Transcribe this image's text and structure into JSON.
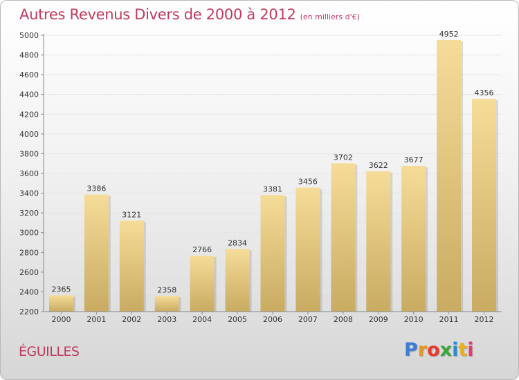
{
  "header": {
    "title": "Autres Revenus Divers de 2000 à 2012",
    "unit": "(en milliers d'€)"
  },
  "footer": {
    "place": "ÉGUILLES",
    "logo": "Proxiti",
    "logo_colors": [
      "#3d7dd8",
      "#e89420",
      "#e83a2a",
      "#3aa83a",
      "#2a8ad8",
      "#e8b020",
      "#e83a6a"
    ]
  },
  "colors": {
    "title": "#c03a5e",
    "bar_light": "#f5dc98",
    "bar_dark": "#c9ab62",
    "grid": "#e6e6e6",
    "axis": "#888888"
  },
  "chart_data": {
    "type": "bar",
    "title": "Autres Revenus Divers de 2000 à 2012",
    "xlabel": "",
    "ylabel": "",
    "categories": [
      "2000",
      "2001",
      "2002",
      "2003",
      "2004",
      "2005",
      "2006",
      "2007",
      "2008",
      "2009",
      "2010",
      "2011",
      "2012"
    ],
    "values": [
      2365,
      3386,
      3121,
      2358,
      2766,
      2834,
      3381,
      3456,
      3702,
      3622,
      3677,
      4952,
      4356
    ],
    "ylim": [
      2200,
      5000
    ],
    "yticks": [
      2200,
      2400,
      2600,
      2800,
      3000,
      3200,
      3400,
      3600,
      3800,
      4000,
      4200,
      4400,
      4600,
      4800,
      5000
    ],
    "grid": true,
    "legend": "none"
  }
}
